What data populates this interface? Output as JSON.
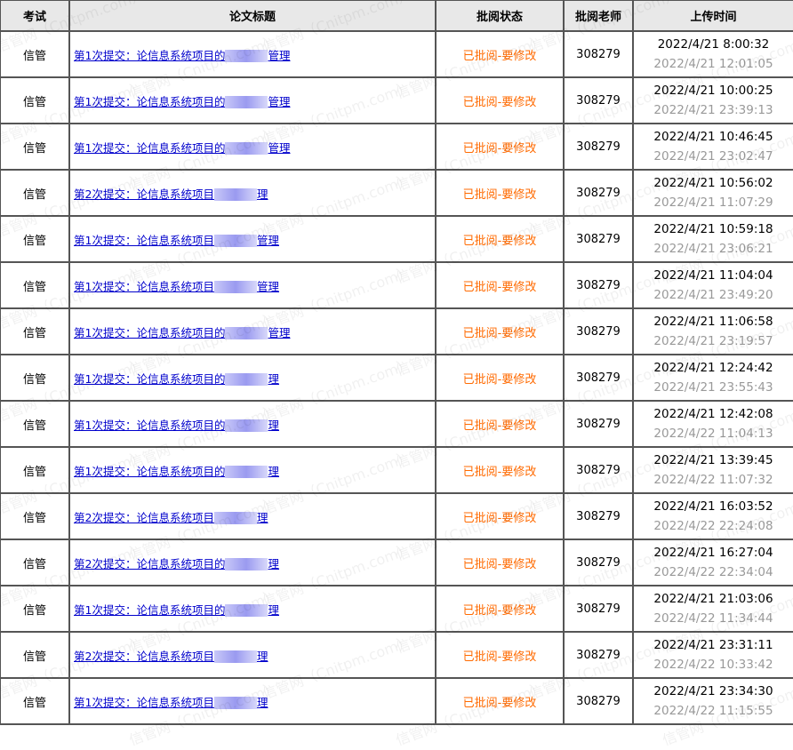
{
  "headers": [
    "考试",
    "论文标题",
    "批阅状态",
    "批阅老师",
    "上传时间"
  ],
  "watermark": "信管网（Cnitpm.com）",
  "rows": [
    {
      "exam": "信管",
      "title_prefix": "第1次提交：论信息系统项目的",
      "title_suffix": "管理",
      "status": "已批阅-要修改",
      "teacher": "308279",
      "upload_time": "2022/4/21 8:00:32",
      "review_time": "2022/4/21 12:01:05"
    },
    {
      "exam": "信管",
      "title_prefix": "第1次提交：论信息系统项目的",
      "title_suffix": "管理",
      "status": "已批阅-要修改",
      "teacher": "308279",
      "upload_time": "2022/4/21 10:00:25",
      "review_time": "2022/4/21 23:39:13"
    },
    {
      "exam": "信管",
      "title_prefix": "第1次提交：论信息系统项目的",
      "title_suffix": "管理",
      "status": "已批阅-要修改",
      "teacher": "308279",
      "upload_time": "2022/4/21 10:46:45",
      "review_time": "2022/4/21 23:02:47"
    },
    {
      "exam": "信管",
      "title_prefix": "第2次提交：论信息系统项目",
      "title_suffix": "理",
      "status": "已批阅-要修改",
      "teacher": "308279",
      "upload_time": "2022/4/21 10:56:02",
      "review_time": "2022/4/21 11:07:29"
    },
    {
      "exam": "信管",
      "title_prefix": "第1次提交：论信息系统项目",
      "title_suffix": "管理",
      "status": "已批阅-要修改",
      "teacher": "308279",
      "upload_time": "2022/4/21 10:59:18",
      "review_time": "2022/4/21 23:06:21"
    },
    {
      "exam": "信管",
      "title_prefix": "第1次提交：论信息系统项目",
      "title_suffix": "管理",
      "status": "已批阅-要修改",
      "teacher": "308279",
      "upload_time": "2022/4/21 11:04:04",
      "review_time": "2022/4/21 23:49:20"
    },
    {
      "exam": "信管",
      "title_prefix": "第1次提交：论信息系统项目的",
      "title_suffix": "管理",
      "status": "已批阅-要修改",
      "teacher": "308279",
      "upload_time": "2022/4/21 11:06:58",
      "review_time": "2022/4/21 23:19:57"
    },
    {
      "exam": "信管",
      "title_prefix": "第1次提交：论信息系统项目的",
      "title_suffix": "理",
      "status": "已批阅-要修改",
      "teacher": "308279",
      "upload_time": "2022/4/21 12:24:42",
      "review_time": "2022/4/21 23:55:43"
    },
    {
      "exam": "信管",
      "title_prefix": "第1次提交：论信息系统项目的",
      "title_suffix": "理",
      "status": "已批阅-要修改",
      "teacher": "308279",
      "upload_time": "2022/4/21 12:42:08",
      "review_time": "2022/4/22 11:04:13"
    },
    {
      "exam": "信管",
      "title_prefix": "第1次提交：论信息系统项目的",
      "title_suffix": "理",
      "status": "已批阅-要修改",
      "teacher": "308279",
      "upload_time": "2022/4/21 13:39:45",
      "review_time": "2022/4/22 11:07:32"
    },
    {
      "exam": "信管",
      "title_prefix": "第2次提交：论信息系统项目",
      "title_suffix": "理",
      "status": "已批阅-要修改",
      "teacher": "308279",
      "upload_time": "2022/4/21 16:03:52",
      "review_time": "2022/4/22 22:24:08"
    },
    {
      "exam": "信管",
      "title_prefix": "第2次提交：论信息系统项目的",
      "title_suffix": "理",
      "status": "已批阅-要修改",
      "teacher": "308279",
      "upload_time": "2022/4/21 16:27:04",
      "review_time": "2022/4/22 22:34:04"
    },
    {
      "exam": "信管",
      "title_prefix": "第1次提交：论信息系统项目的",
      "title_suffix": "理",
      "status": "已批阅-要修改",
      "teacher": "308279",
      "upload_time": "2022/4/21 21:03:06",
      "review_time": "2022/4/22 11:34:44"
    },
    {
      "exam": "信管",
      "title_prefix": "第2次提交：论信息系统项目",
      "title_suffix": "理",
      "status": "已批阅-要修改",
      "teacher": "308279",
      "upload_time": "2022/4/21 23:31:11",
      "review_time": "2022/4/22 10:33:42"
    },
    {
      "exam": "信管",
      "title_prefix": "第1次提交：论信息系统项目",
      "title_suffix": "理",
      "status": "已批阅-要修改",
      "teacher": "308279",
      "upload_time": "2022/4/21 23:34:30",
      "review_time": "2022/4/22 11:15:55"
    }
  ]
}
